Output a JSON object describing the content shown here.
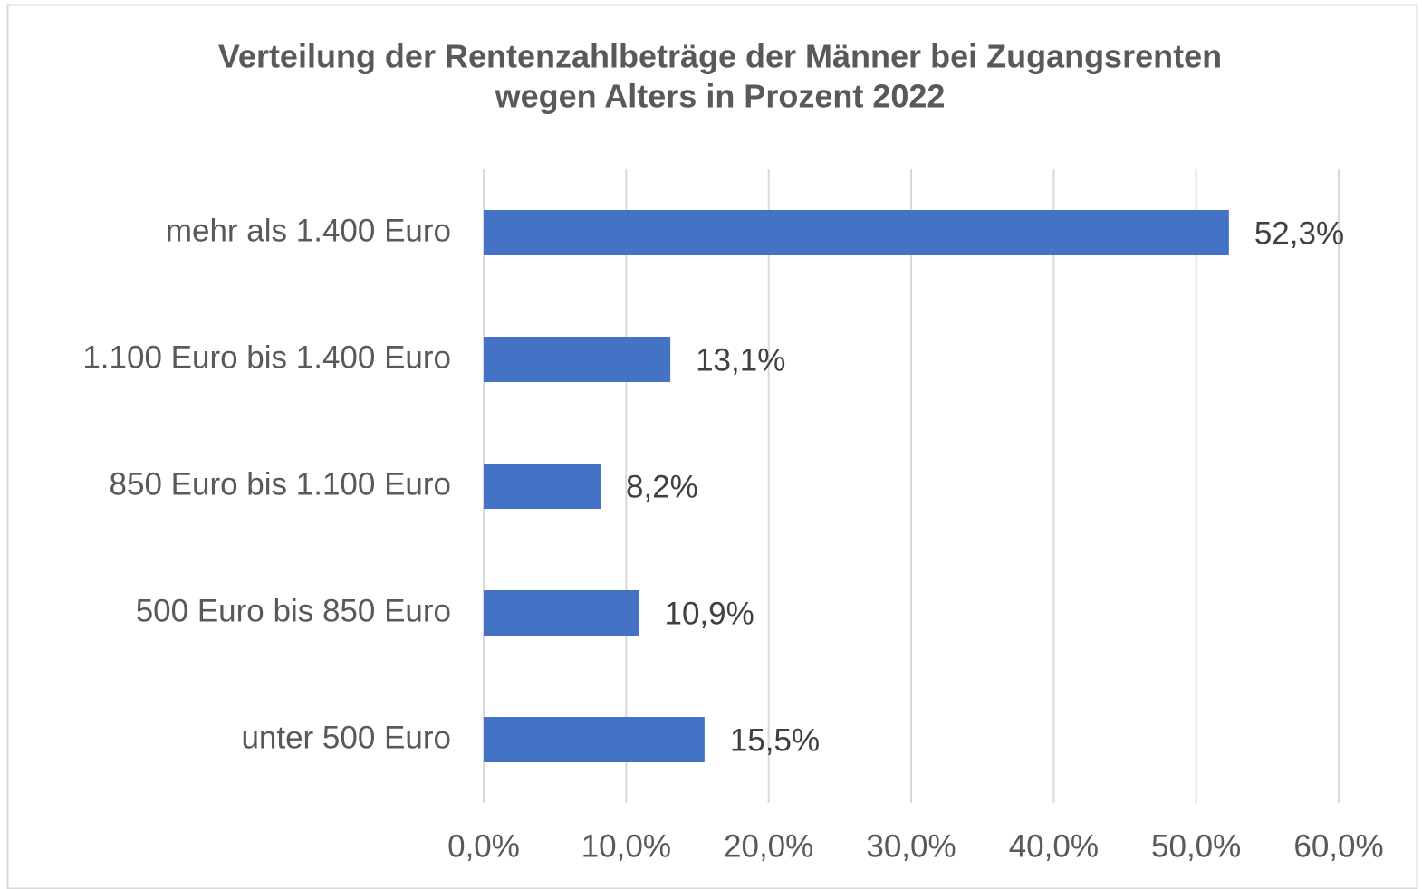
{
  "chart_data": {
    "type": "barh",
    "title": [
      "Verteilung der Rentenzahlbeträge der Männer bei Zugangsrenten",
      "wegen Alters in Prozent 2022"
    ],
    "categories": [
      "mehr als 1.400 Euro",
      "1.100 Euro bis 1.400 Euro",
      "850 Euro bis 1.100 Euro",
      "500 Euro bis 850 Euro",
      "unter 500 Euro"
    ],
    "values": [
      52.3,
      13.1,
      8.2,
      10.9,
      15.5
    ],
    "value_labels": [
      "52,3%",
      "13,1%",
      "8,2%",
      "10,9%",
      "15,5%"
    ],
    "color": "#4472c4",
    "xlim": [
      0,
      60
    ],
    "xticks": [
      {
        "value": 0,
        "label": "0,0%"
      },
      {
        "value": 10,
        "label": "10,0%"
      },
      {
        "value": 20,
        "label": "20,0%"
      },
      {
        "value": 30,
        "label": "30,0%"
      },
      {
        "value": 40,
        "label": "40,0%"
      },
      {
        "value": 50,
        "label": "50,0%"
      },
      {
        "value": 60,
        "label": "60,0%"
      }
    ],
    "grid": true
  }
}
